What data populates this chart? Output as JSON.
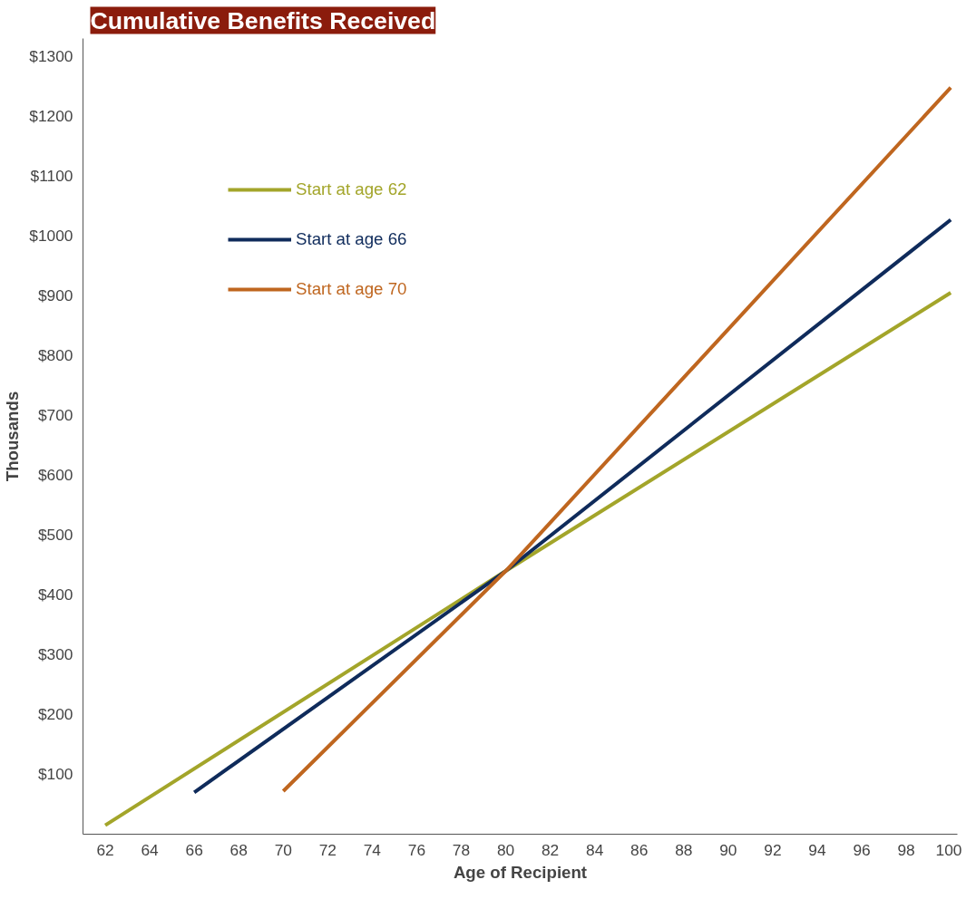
{
  "chart_data": {
    "type": "line",
    "title": "Cumulative Benefits Received",
    "xlabel": "Age of Recipient",
    "ylabel": "Thousands",
    "series": [
      {
        "name": "Start at age 62",
        "color": "#a3a52a",
        "x": [
          62,
          80,
          100
        ],
        "values": [
          15,
          440,
          905
        ]
      },
      {
        "name": "Start at age 66",
        "color": "#0f2b5b",
        "x": [
          66,
          80,
          100
        ],
        "values": [
          70,
          440,
          1027
        ]
      },
      {
        "name": "Start at age 70",
        "color": "#bf661f",
        "x": [
          70,
          80,
          100
        ],
        "values": [
          72,
          440,
          1248
        ]
      }
    ],
    "xlim": [
      61,
      100.3
    ],
    "ylim": [
      0,
      1330
    ],
    "xticks": [
      62,
      64,
      66,
      68,
      70,
      72,
      74,
      76,
      78,
      80,
      82,
      84,
      86,
      88,
      90,
      92,
      94,
      96,
      98,
      100
    ],
    "yticks": [
      {
        "value": 100,
        "label": "$100"
      },
      {
        "value": 200,
        "label": "$200"
      },
      {
        "value": 300,
        "label": "$300"
      },
      {
        "value": 400,
        "label": "$400"
      },
      {
        "value": 500,
        "label": "$500"
      },
      {
        "value": 600,
        "label": "$600"
      },
      {
        "value": 700,
        "label": "$700"
      },
      {
        "value": 800,
        "label": "$800"
      },
      {
        "value": 900,
        "label": "$900"
      },
      {
        "value": 1000,
        "label": "$1000"
      },
      {
        "value": 1100,
        "label": "$1100"
      },
      {
        "value": 1200,
        "label": "$1200"
      },
      {
        "value": 1300,
        "label": "$1300"
      }
    ],
    "legend": "top left",
    "grid": false,
    "marker": "none",
    "line_style": "solid"
  }
}
